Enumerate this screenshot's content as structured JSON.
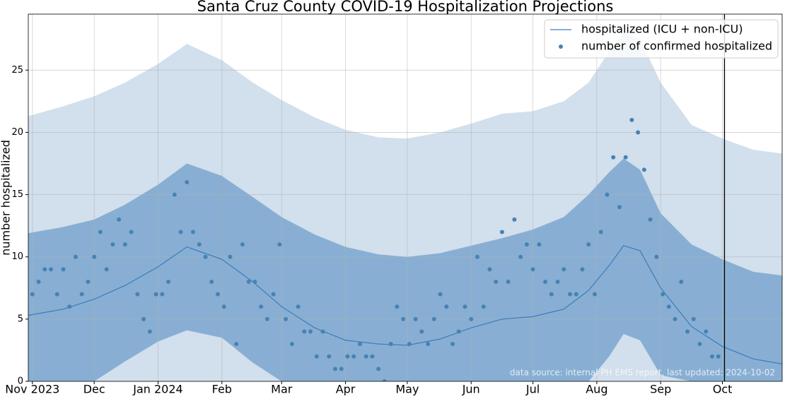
{
  "chart_data": {
    "type": "line",
    "title": "Santa Cruz County COVID-19 Hospitalization Projections",
    "y_label": "number hospitalized",
    "annotation": "data source: internal PH EMS report, last updated: 2024-10-02",
    "xlim": [
      -2,
      364
    ],
    "ylim": [
      0,
      29.5
    ],
    "xticks": [
      {
        "value": 0,
        "label": "Nov 2023"
      },
      {
        "value": 30,
        "label": "Dec"
      },
      {
        "value": 61,
        "label": "Jan 2024"
      },
      {
        "value": 92,
        "label": "Feb"
      },
      {
        "value": 121,
        "label": "Mar"
      },
      {
        "value": 152,
        "label": "Apr"
      },
      {
        "value": 182,
        "label": "May"
      },
      {
        "value": 213,
        "label": "Jun"
      },
      {
        "value": 243,
        "label": "Jul"
      },
      {
        "value": 274,
        "label": "Aug"
      },
      {
        "value": 305,
        "label": "Sep"
      },
      {
        "value": 335,
        "label": "Oct"
      }
    ],
    "yticks": [
      0,
      5,
      10,
      15,
      20,
      25
    ],
    "grid": true,
    "legend": "upper right",
    "bands": [
      {
        "color": "#d2dfec",
        "x": [
          -2,
          15,
          30,
          45,
          61,
          75,
          92,
          107,
          121,
          137,
          152,
          168,
          182,
          198,
          213,
          228,
          243,
          258,
          270,
          280,
          287,
          295,
          305,
          320,
          335,
          350,
          364
        ],
        "upper": [
          21.3,
          22.1,
          22.9,
          24.0,
          25.5,
          27.1,
          25.8,
          24.0,
          22.6,
          21.2,
          20.2,
          19.6,
          19.5,
          20.0,
          20.7,
          21.5,
          21.7,
          22.5,
          24.0,
          26.5,
          28.0,
          27.5,
          24.0,
          20.6,
          19.5,
          18.6,
          18.3
        ],
        "lower": [
          0,
          0,
          0,
          0,
          0,
          0,
          0,
          0,
          0,
          0,
          0,
          0,
          0,
          0,
          0,
          0,
          0,
          0,
          0,
          0,
          0,
          0,
          0,
          0,
          0,
          0,
          0
        ]
      },
      {
        "color": "#88afd3",
        "x": [
          -2,
          15,
          30,
          45,
          61,
          75,
          92,
          107,
          121,
          137,
          152,
          168,
          182,
          198,
          213,
          228,
          243,
          258,
          270,
          280,
          287,
          295,
          305,
          320,
          335,
          350,
          364
        ],
        "upper": [
          11.9,
          12.4,
          13.0,
          14.2,
          15.8,
          17.5,
          16.5,
          14.8,
          13.2,
          11.8,
          10.8,
          10.2,
          10.0,
          10.3,
          10.9,
          11.5,
          12.2,
          13.2,
          15.0,
          16.8,
          17.9,
          17.0,
          13.5,
          11.0,
          9.8,
          8.8,
          8.5
        ],
        "lower": [
          0,
          0,
          0,
          1.6,
          3.2,
          4.1,
          3.5,
          1.5,
          0,
          0,
          0,
          0,
          0,
          0,
          0,
          0,
          0,
          0,
          0,
          2.0,
          3.8,
          3.3,
          0.5,
          0,
          0,
          0,
          0
        ]
      }
    ],
    "series": [
      {
        "name": "hospitalized (ICU + non-ICU)",
        "type": "line",
        "color": "#3f7fbf",
        "x": [
          -2,
          15,
          30,
          45,
          61,
          75,
          92,
          107,
          121,
          137,
          152,
          168,
          182,
          198,
          213,
          228,
          243,
          258,
          270,
          280,
          287,
          295,
          305,
          320,
          335,
          350,
          364
        ],
        "values": [
          5.3,
          5.8,
          6.6,
          7.7,
          9.2,
          10.8,
          9.8,
          8.0,
          6.0,
          4.3,
          3.3,
          3.0,
          2.9,
          3.4,
          4.3,
          5.0,
          5.2,
          5.8,
          7.3,
          9.3,
          10.9,
          10.5,
          7.5,
          4.4,
          2.8,
          1.8,
          1.4
        ]
      },
      {
        "name": "number of confirmed hospitalized",
        "type": "scatter",
        "color": "#4682b4",
        "x": [
          0,
          3,
          6,
          9,
          12,
          15,
          18,
          21,
          24,
          27,
          30,
          33,
          36,
          39,
          42,
          45,
          48,
          51,
          54,
          57,
          60,
          63,
          66,
          69,
          72,
          75,
          78,
          81,
          84,
          87,
          90,
          93,
          96,
          99,
          102,
          105,
          108,
          111,
          114,
          117,
          120,
          123,
          126,
          129,
          132,
          135,
          138,
          141,
          144,
          147,
          150,
          153,
          156,
          159,
          162,
          165,
          168,
          171,
          174,
          177,
          180,
          183,
          186,
          189,
          192,
          195,
          198,
          201,
          204,
          207,
          210,
          213,
          216,
          219,
          222,
          225,
          228,
          231,
          234,
          237,
          240,
          243,
          246,
          249,
          252,
          255,
          258,
          261,
          264,
          267,
          270,
          273,
          276,
          279,
          282,
          285,
          288,
          291,
          294,
          297,
          300,
          303,
          306,
          309,
          312,
          315,
          318,
          321,
          324,
          327,
          330,
          333
        ],
        "values": [
          7,
          8,
          9,
          9,
          7,
          9,
          6,
          10,
          7,
          8,
          10,
          12,
          9,
          11,
          13,
          11,
          12,
          7,
          5,
          4,
          7,
          7,
          8,
          15,
          12,
          16,
          12,
          11,
          10,
          8,
          7,
          6,
          10,
          3,
          11,
          8,
          8,
          6,
          5,
          7,
          11,
          5,
          3,
          6,
          4,
          4,
          2,
          4,
          2,
          1,
          1,
          2,
          2,
          3,
          2,
          2,
          1,
          0,
          3,
          6,
          5,
          3,
          5,
          4,
          3,
          5,
          7,
          6,
          3,
          4,
          6,
          5,
          10,
          6,
          9,
          8,
          12,
          8,
          13,
          10,
          11,
          9,
          11,
          8,
          7,
          8,
          9,
          7,
          7,
          9,
          11,
          7,
          12,
          15,
          18,
          14,
          18,
          21,
          20,
          17,
          13,
          10,
          7,
          6,
          5,
          8,
          4,
          5,
          3,
          4,
          2,
          2
        ]
      }
    ],
    "vlines": [
      {
        "x": 336,
        "color": "#000000"
      }
    ]
  }
}
